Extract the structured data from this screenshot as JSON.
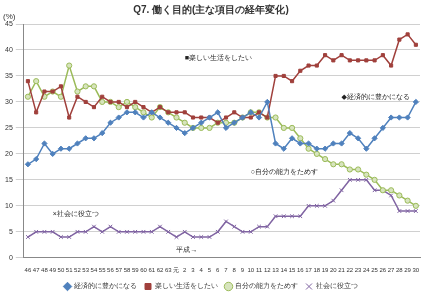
{
  "chart_data": {
    "type": "line",
    "title": "Q7. 働く目的(主な項目の経年変化)",
    "y_label": "(%)",
    "categories": [
      "46",
      "47",
      "48",
      "49",
      "50",
      "51",
      "52",
      "53",
      "54",
      "55",
      "56",
      "57",
      "58",
      "59",
      "60",
      "61",
      "62",
      "63",
      "元",
      "2",
      "3",
      "4",
      "5",
      "6",
      "7",
      "8",
      "9",
      "10",
      "11",
      "12",
      "13",
      "14",
      "15",
      "16",
      "17",
      "18",
      "19",
      "20",
      "21",
      "22",
      "23",
      "24",
      "25",
      "26",
      "27",
      "28",
      "29",
      "30"
    ],
    "series": [
      {
        "name": "経済的に豊かになる",
        "color": "#4f81bd",
        "marker": "diamond",
        "values": [
          18,
          19,
          22,
          20,
          21,
          21,
          22,
          23,
          23,
          24,
          26,
          27,
          28,
          28,
          27,
          28,
          27,
          26,
          25,
          24,
          25,
          26,
          27,
          28,
          25,
          26,
          27,
          28,
          27,
          30,
          22,
          21,
          23,
          22,
          22,
          21,
          21,
          22,
          22,
          24,
          23,
          21,
          23,
          25,
          27,
          27,
          27,
          30
        ]
      },
      {
        "name": "楽しい生活をしたい",
        "color": "#a0403c",
        "marker": "square",
        "values": [
          34,
          28,
          32,
          32,
          33,
          27,
          31,
          30,
          29,
          31,
          30,
          30,
          29,
          30,
          29,
          28,
          29,
          28,
          28,
          28,
          27,
          27,
          27,
          26,
          27,
          28,
          27,
          27,
          28,
          27,
          35,
          35,
          34,
          36,
          37,
          37,
          39,
          38,
          39,
          38,
          38,
          38,
          38,
          39,
          37,
          42,
          43,
          41
        ]
      },
      {
        "name": "自分の能力をためす",
        "color": "#9bbb59",
        "marker": "circle",
        "values": [
          31,
          34,
          31,
          32,
          31,
          37,
          32,
          33,
          33,
          30,
          30,
          29,
          30,
          29,
          28,
          27,
          29,
          28,
          27,
          26,
          25,
          25,
          25,
          26,
          26,
          26,
          27,
          28,
          28,
          27,
          27,
          25,
          25,
          23,
          21,
          20,
          19,
          18,
          18,
          17,
          17,
          16,
          15,
          13,
          13,
          12,
          11,
          10
        ]
      },
      {
        "name": "社会に役立つ",
        "color": "#8064a2",
        "marker": "x",
        "values": [
          4,
          5,
          5,
          5,
          4,
          4,
          5,
          5,
          6,
          5,
          6,
          5,
          5,
          5,
          5,
          5,
          6,
          5,
          4,
          5,
          4,
          4,
          4,
          5,
          7,
          6,
          5,
          5,
          6,
          6,
          8,
          8,
          8,
          8,
          10,
          10,
          10,
          11,
          13,
          15,
          15,
          15,
          13,
          13,
          12,
          9,
          9,
          9
        ]
      }
    ],
    "ylim": [
      0,
      45
    ],
    "yticks": [
      0,
      5,
      10,
      15,
      20,
      25,
      30,
      35,
      40,
      45
    ],
    "grid": true,
    "legend": "bottom",
    "annotations": [
      "■楽しい生活をしたい",
      "◆経済的に豊かになる",
      "○自分の能力をためす",
      "×社会に役立つ",
      "平成→"
    ]
  }
}
